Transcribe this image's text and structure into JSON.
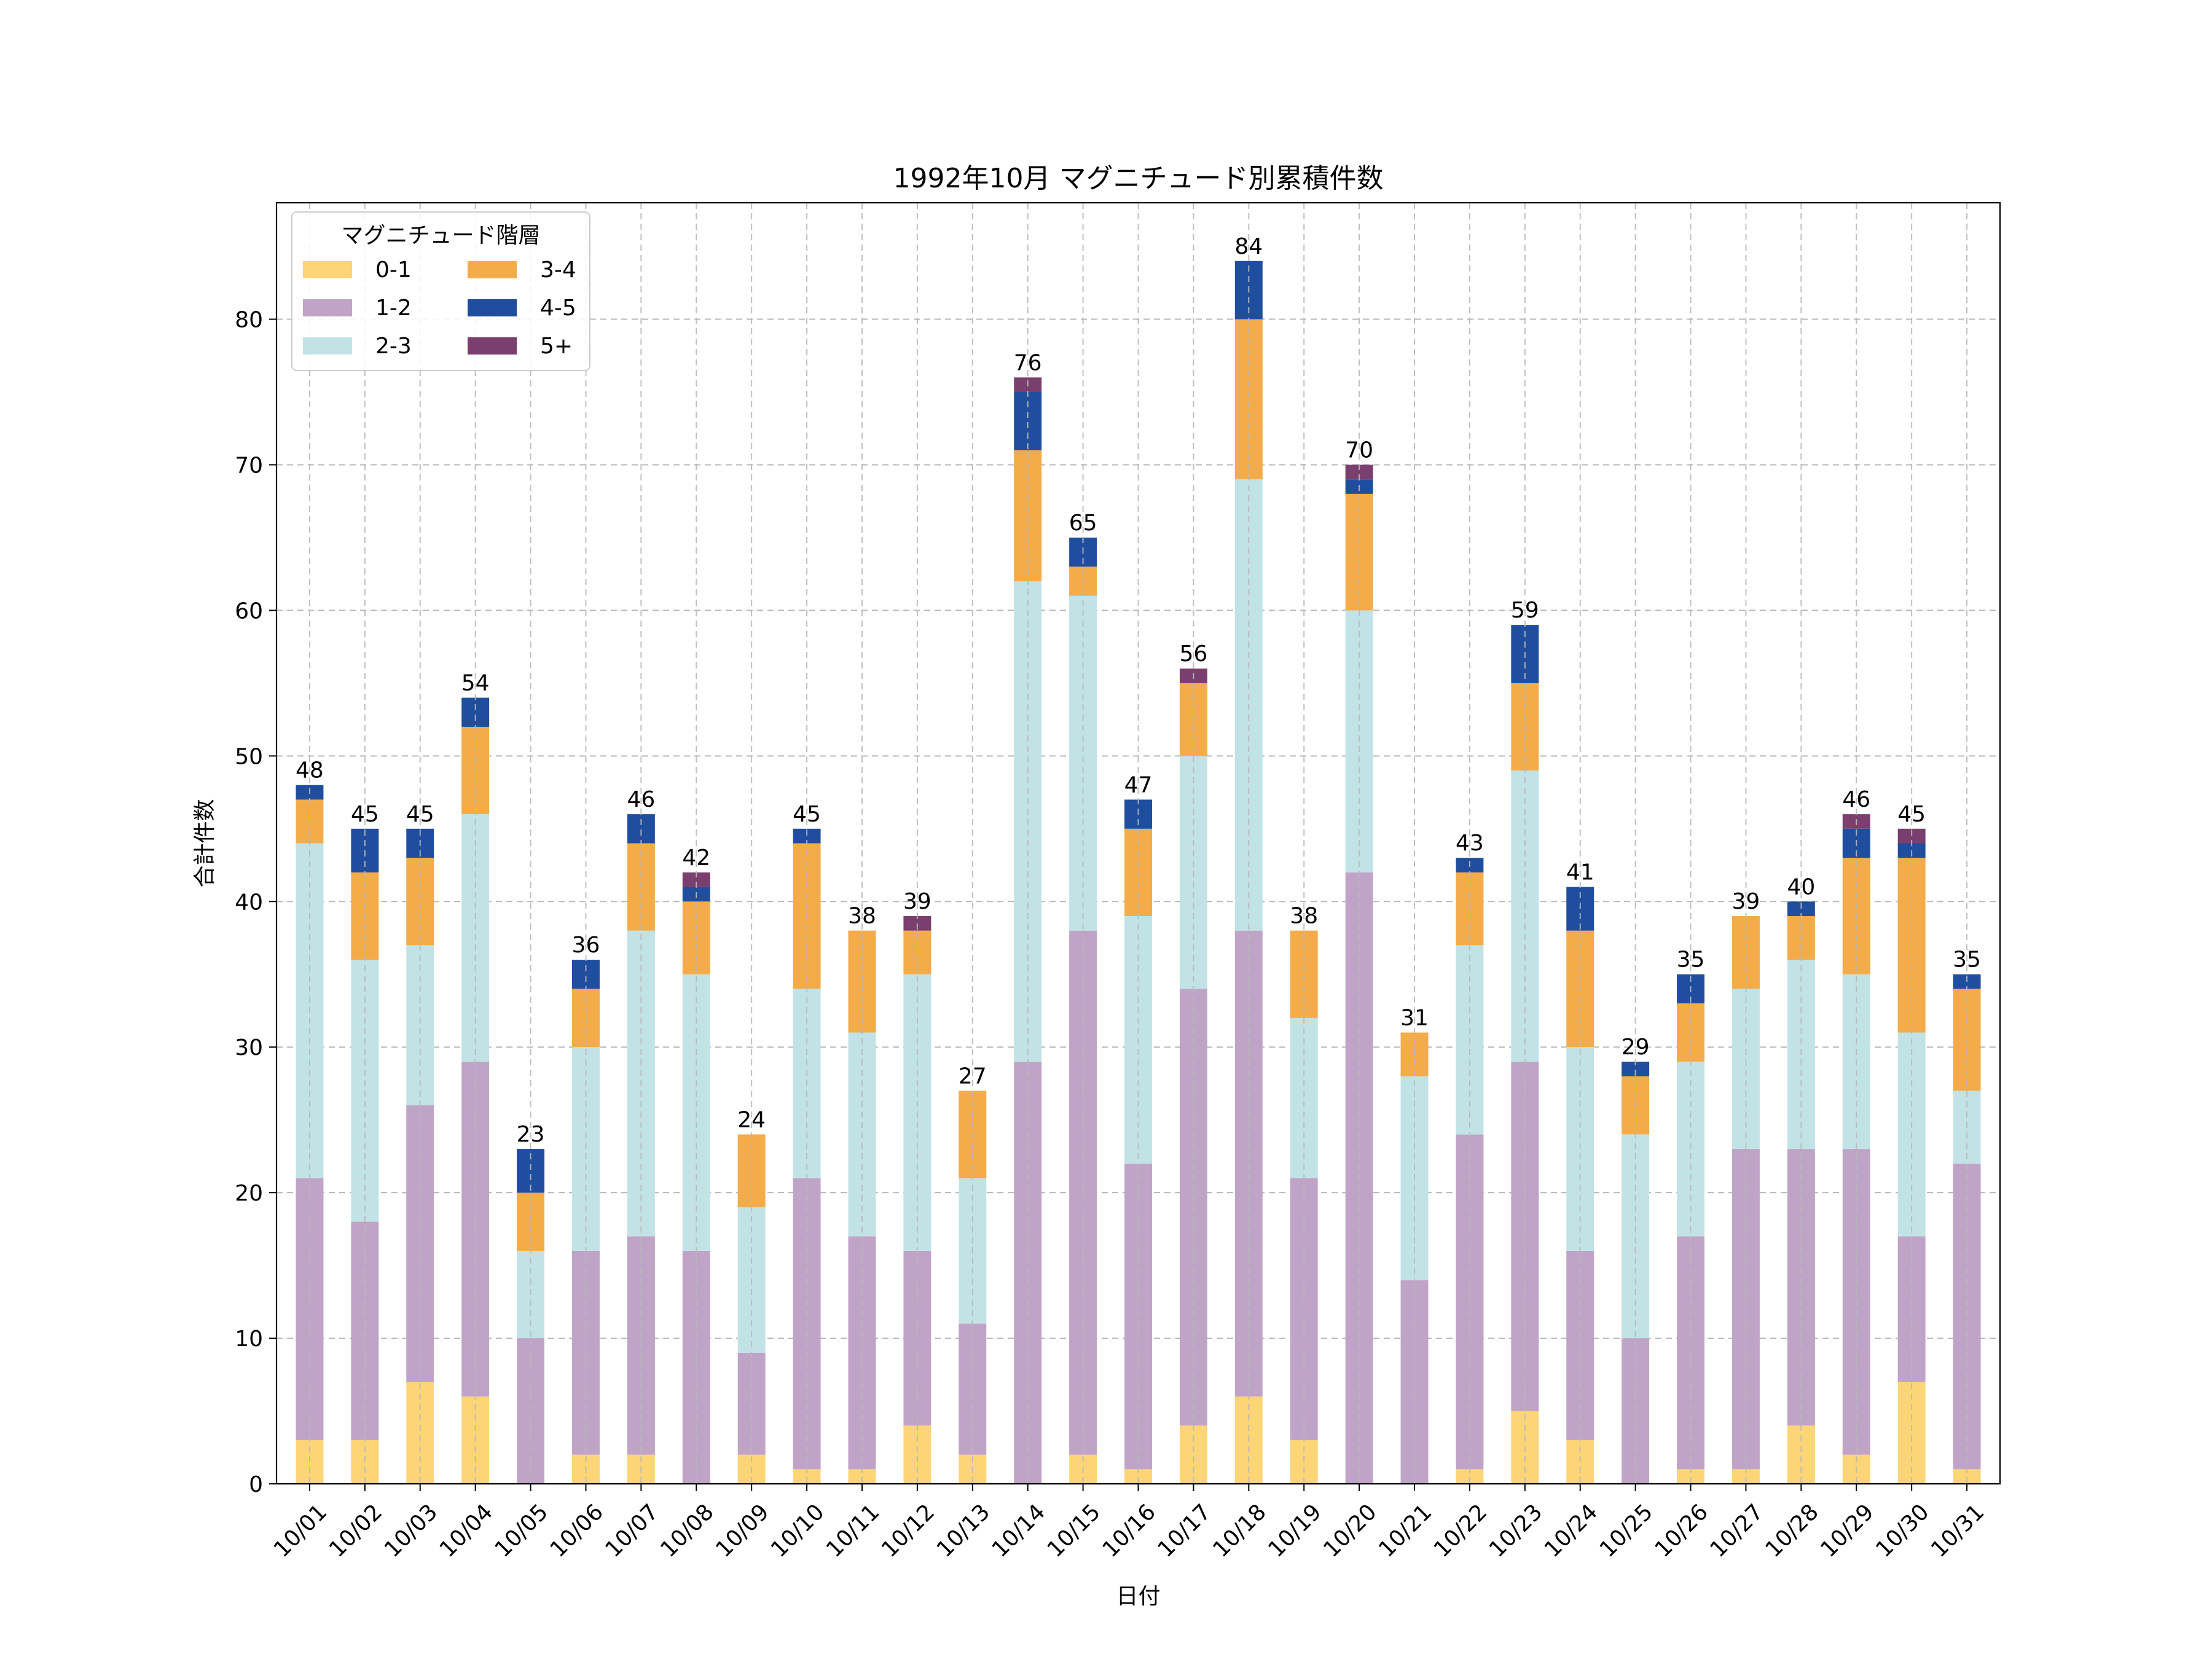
{
  "chart_data": {
    "type": "bar",
    "stacked": true,
    "title": "1992年10月 マグニチュード別累積件数",
    "xlabel": "日付",
    "ylabel": "合計件数",
    "ylim": [
      0,
      88
    ],
    "yticks": [
      0,
      10,
      20,
      30,
      40,
      50,
      60,
      70,
      80
    ],
    "grid": true,
    "legend": {
      "title": "マグニチュード階層",
      "placement": "top-left",
      "columns": 2
    },
    "categories": [
      "10/01",
      "10/02",
      "10/03",
      "10/04",
      "10/05",
      "10/06",
      "10/07",
      "10/08",
      "10/09",
      "10/10",
      "10/11",
      "10/12",
      "10/13",
      "10/14",
      "10/15",
      "10/16",
      "10/17",
      "10/18",
      "10/19",
      "10/20",
      "10/21",
      "10/22",
      "10/23",
      "10/24",
      "10/25",
      "10/26",
      "10/27",
      "10/28",
      "10/29",
      "10/30",
      "10/31"
    ],
    "series": [
      {
        "name": "0-1",
        "color": "#FCD577",
        "values": [
          3,
          3,
          7,
          6,
          0,
          2,
          2,
          0,
          2,
          1,
          1,
          4,
          2,
          0,
          2,
          1,
          4,
          6,
          3,
          0,
          0,
          1,
          5,
          3,
          0,
          1,
          1,
          4,
          2,
          7,
          1
        ]
      },
      {
        "name": "1-2",
        "color": "#C0A4C8",
        "values": [
          18,
          15,
          19,
          23,
          10,
          14,
          15,
          16,
          7,
          20,
          16,
          12,
          9,
          29,
          36,
          21,
          30,
          32,
          18,
          42,
          14,
          23,
          24,
          13,
          10,
          16,
          22,
          19,
          21,
          10,
          21
        ]
      },
      {
        "name": "2-3",
        "color": "#C2E3E6",
        "values": [
          23,
          18,
          11,
          17,
          6,
          14,
          21,
          19,
          10,
          13,
          14,
          19,
          10,
          33,
          23,
          17,
          16,
          31,
          11,
          18,
          14,
          13,
          20,
          14,
          14,
          12,
          11,
          13,
          12,
          14,
          5
        ]
      },
      {
        "name": "3-4",
        "color": "#F4AC4A",
        "values": [
          3,
          6,
          6,
          6,
          4,
          4,
          6,
          5,
          5,
          10,
          7,
          3,
          6,
          9,
          2,
          6,
          5,
          11,
          6,
          8,
          3,
          5,
          6,
          8,
          4,
          4,
          5,
          3,
          8,
          12,
          7
        ]
      },
      {
        "name": "4-5",
        "color": "#1F4E9E",
        "values": [
          1,
          3,
          2,
          2,
          3,
          2,
          2,
          1,
          0,
          1,
          0,
          0,
          0,
          4,
          2,
          2,
          0,
          4,
          0,
          1,
          0,
          1,
          4,
          3,
          1,
          2,
          0,
          1,
          2,
          1,
          1
        ]
      },
      {
        "name": "5+",
        "color": "#7A3F6E",
        "values": [
          0,
          0,
          0,
          0,
          0,
          0,
          0,
          1,
          0,
          0,
          0,
          1,
          0,
          1,
          0,
          0,
          1,
          0,
          0,
          1,
          0,
          0,
          0,
          0,
          0,
          0,
          0,
          0,
          1,
          1,
          0
        ]
      }
    ],
    "totals": [
      48,
      45,
      45,
      54,
      23,
      36,
      46,
      42,
      24,
      45,
      38,
      39,
      27,
      76,
      65,
      47,
      56,
      84,
      38,
      70,
      31,
      43,
      59,
      41,
      29,
      35,
      39,
      40,
      46,
      45,
      35
    ]
  }
}
